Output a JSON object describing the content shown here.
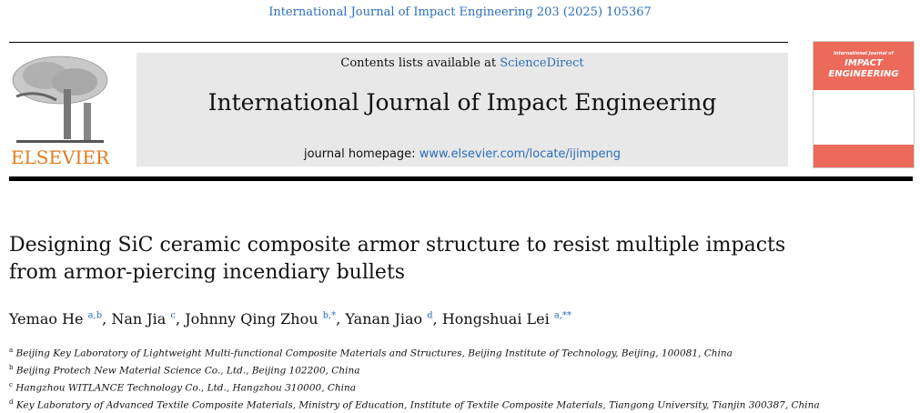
{
  "header": {
    "citation": "International Journal of Impact Engineering 203 (2025) 105367",
    "contents_prefix": "Contents lists available at ",
    "contents_link": "ScienceDirect",
    "journal_title": "International Journal of Impact Engineering",
    "homepage_prefix": "journal homepage: ",
    "homepage_link": "www.elsevier.com/locate/ijimpeng",
    "publisher": "ELSEVIER",
    "cover": {
      "line1": "International Journal of",
      "line2": "IMPACT",
      "line3": "ENGINEERING"
    }
  },
  "article": {
    "title": "Designing SiC ceramic composite armor structure to resist multiple impacts from armor-piercing incendiary bullets",
    "authors": [
      {
        "name": "Yemao He",
        "sup": "a,b"
      },
      {
        "name": "Nan Jia",
        "sup": "c"
      },
      {
        "name": "Johnny Qing Zhou",
        "sup": "b,*"
      },
      {
        "name": "Yanan Jiao",
        "sup": "d"
      },
      {
        "name": "Hongshuai Lei",
        "sup": "a,**"
      }
    ],
    "affiliations": [
      {
        "key": "a",
        "text": "Beijing Key Laboratory of Lightweight Multi-functional Composite Materials and Structures, Beijing Institute of Technology, Beijing, 100081, China"
      },
      {
        "key": "b",
        "text": "Beijing Protech New Material Science Co., Ltd., Beijing 102200, China"
      },
      {
        "key": "c",
        "text": "Hangzhou WITLANCE Technology Co., Ltd., Hangzhou 310000, China"
      },
      {
        "key": "d",
        "text": "Key Laboratory of Advanced Textile Composite Materials, Ministry of Education, Institute of Textile Composite Materials, Tiangong University, Tianjin 300387, China"
      }
    ]
  },
  "colors": {
    "link": "#2a6ebb",
    "publisher": "#e07b1f",
    "cover": "#ec6a5a"
  }
}
